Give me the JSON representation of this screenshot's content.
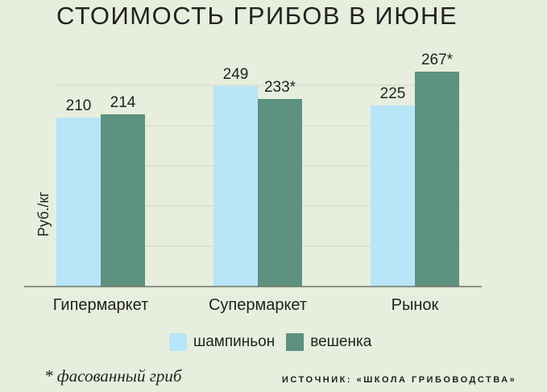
{
  "colors": {
    "background": "#e7eedd",
    "series_1": "#b8e5f8",
    "series_2": "#5d9180",
    "gridline": "#cfd6c5",
    "axis": "#6f776b"
  },
  "footnote": "* фасованный гриб",
  "source": "ИСТОЧНИК: «ШКОЛА ГРИБОВОДСТВА»",
  "chart_data": {
    "type": "bar",
    "title": "СТОИМОСТЬ ГРИБОВ В ИЮНЕ",
    "ylabel": "Руб./кг",
    "xlabel": "",
    "categories": [
      "Гипермаркет",
      "Супермаркет",
      "Рынок"
    ],
    "series": [
      {
        "name": "шампиньон",
        "values": [
          210,
          249,
          225
        ],
        "labels": [
          "210",
          "249",
          "225"
        ]
      },
      {
        "name": "вешенка",
        "values": [
          214,
          233,
          267
        ],
        "labels": [
          "214",
          "233*",
          "267*"
        ]
      }
    ],
    "ylim": [
      0,
      300
    ],
    "grid": true,
    "legend_position": "bottom-center"
  }
}
